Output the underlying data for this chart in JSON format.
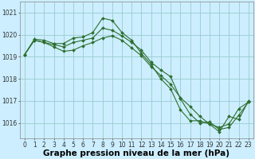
{
  "background_color": "#cceeff",
  "grid_color": "#99cccc",
  "line_color": "#2d6e2d",
  "marker_color": "#2d6e2d",
  "x_values": [
    0,
    1,
    2,
    3,
    4,
    5,
    6,
    7,
    8,
    9,
    10,
    11,
    12,
    13,
    14,
    15,
    16,
    17,
    18,
    19,
    20,
    21,
    22,
    23
  ],
  "series1": [
    1019.1,
    1019.8,
    1019.75,
    1019.6,
    1019.6,
    1019.85,
    1019.9,
    1020.1,
    1020.75,
    1020.65,
    1020.1,
    1019.75,
    1019.15,
    1018.65,
    1018.0,
    1017.55,
    1016.6,
    1016.1,
    1016.1,
    1015.95,
    1015.6,
    1016.3,
    1016.15,
    1017.0
  ],
  "series2": [
    1019.1,
    1019.75,
    1019.65,
    1019.55,
    1019.45,
    1019.65,
    1019.75,
    1019.85,
    1020.3,
    1020.2,
    1019.95,
    1019.65,
    1019.3,
    1018.75,
    1018.4,
    1018.1,
    1017.1,
    1016.4,
    1016.0,
    1016.05,
    1015.7,
    1015.8,
    1016.35,
    1016.95
  ],
  "series3": [
    1019.1,
    1019.75,
    1019.65,
    1019.45,
    1019.25,
    1019.3,
    1019.5,
    1019.65,
    1019.85,
    1019.95,
    1019.75,
    1019.4,
    1019.05,
    1018.55,
    1018.15,
    1017.75,
    1017.15,
    1016.75,
    1016.3,
    1015.95,
    1015.8,
    1015.95,
    1016.65,
    1016.95
  ],
  "ylim": [
    1015.3,
    1021.5
  ],
  "yticks": [
    1016,
    1017,
    1018,
    1019,
    1020,
    1021
  ],
  "tick_fontsize": 5.5,
  "xlabel": "Graphe pression niveau de la mer (hPa)",
  "xlabel_fontsize": 7.5
}
